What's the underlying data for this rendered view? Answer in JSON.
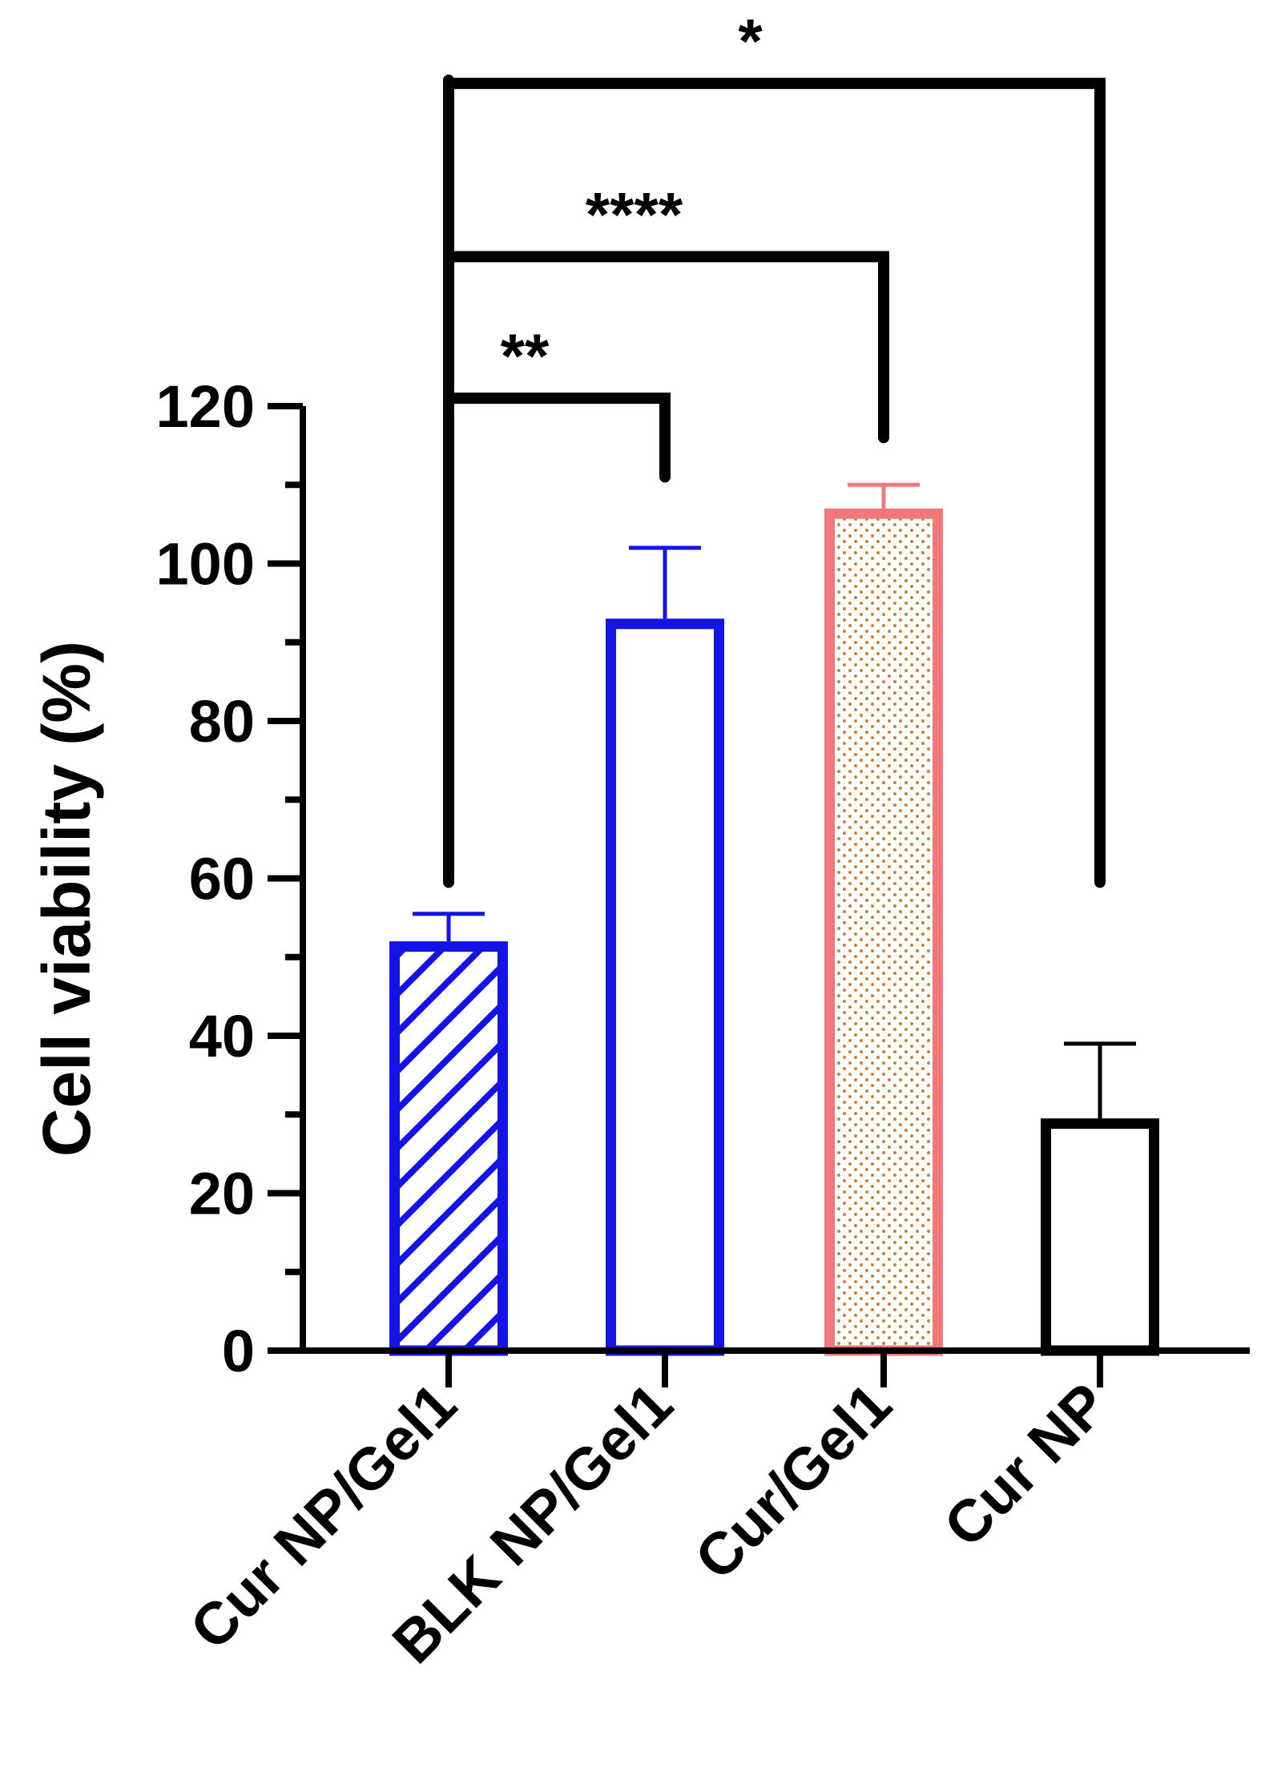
{
  "chart_data": {
    "type": "bar",
    "title": "",
    "xlabel": "",
    "ylabel": "Cell viability (%)",
    "ylim": [
      0,
      120
    ],
    "y_ticks": [
      0,
      20,
      40,
      60,
      80,
      100,
      120
    ],
    "y_tick_labels": [
      "0",
      "20",
      "40",
      "60",
      "80",
      "100",
      "120"
    ],
    "categories": [
      "Cur NP/Gel1",
      "BLK NP/Gel1",
      "Cur/Gel1",
      "Cur NP"
    ],
    "values": [
      52,
      93,
      107,
      29.5
    ],
    "errors": [
      3.5,
      9,
      3,
      9.5
    ],
    "bar_styles": [
      {
        "stroke": "#1414E6",
        "fill": "hatch",
        "hatch_color": "#1414E6"
      },
      {
        "stroke": "#1414E6",
        "fill": "none"
      },
      {
        "stroke": "#F07878",
        "fill": "dots",
        "dot_color": "#C8823C"
      },
      {
        "stroke": "#000000",
        "fill": "none"
      }
    ],
    "significance": [
      {
        "from": 0,
        "to": 1,
        "label": "**",
        "level": 121,
        "drop_to": 111
      },
      {
        "from": 0,
        "to": 2,
        "label": "****",
        "level": 139,
        "drop_to": 116
      },
      {
        "from": 0,
        "to": 3,
        "label": "*",
        "level": 161,
        "drop_to": 59.5
      }
    ],
    "left_bracket_bottom": 59.5
  }
}
